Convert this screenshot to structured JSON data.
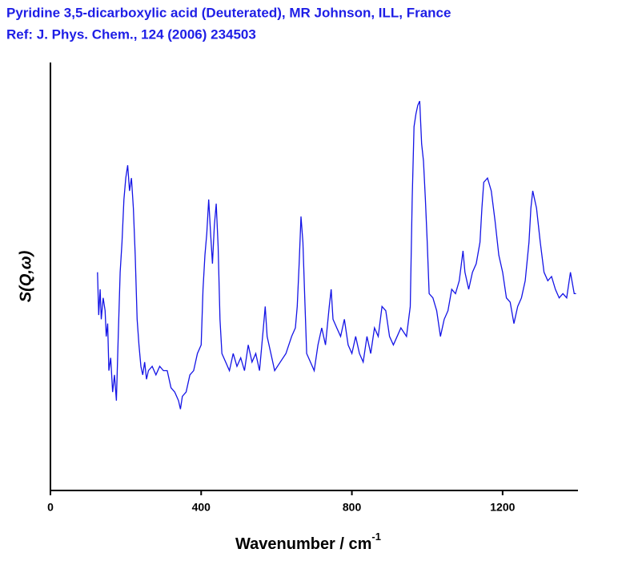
{
  "chart_data": {
    "type": "line",
    "title": "Pyridine 3,5-dicarboxylic acid (Deuterated), MR Johnson, ILL, France",
    "subtitle": "Ref: J. Phys. Chem., 124 (2006) 234503",
    "x_label": "Wavenumber / cm",
    "x_label_superscript": "-1",
    "y_label": "S(Q,ω)",
    "xlim": [
      0,
      1400
    ],
    "xticks": [
      0,
      400,
      800,
      1200
    ],
    "ylim": [
      0,
      100
    ],
    "color": "#1414e6",
    "x": [
      125,
      128,
      132,
      135,
      140,
      145,
      148,
      152,
      155,
      160,
      165,
      170,
      175,
      180,
      185,
      190,
      195,
      200,
      205,
      210,
      215,
      220,
      225,
      230,
      235,
      240,
      245,
      250,
      255,
      260,
      270,
      280,
      290,
      300,
      310,
      320,
      330,
      340,
      345,
      350,
      360,
      370,
      380,
      390,
      400,
      405,
      410,
      415,
      420,
      425,
      430,
      435,
      440,
      445,
      450,
      455,
      465,
      475,
      485,
      495,
      505,
      515,
      525,
      535,
      545,
      555,
      565,
      570,
      575,
      585,
      595,
      610,
      625,
      640,
      650,
      655,
      660,
      665,
      670,
      675,
      680,
      690,
      700,
      710,
      720,
      730,
      740,
      745,
      750,
      760,
      770,
      780,
      790,
      800,
      810,
      820,
      830,
      840,
      850,
      860,
      870,
      880,
      890,
      900,
      910,
      920,
      930,
      945,
      955,
      960,
      965,
      970,
      975,
      980,
      985,
      990,
      995,
      1000,
      1005,
      1015,
      1025,
      1035,
      1045,
      1055,
      1065,
      1075,
      1085,
      1095,
      1100,
      1110,
      1120,
      1130,
      1140,
      1145,
      1150,
      1160,
      1170,
      1180,
      1190,
      1200,
      1210,
      1220,
      1230,
      1240,
      1250,
      1260,
      1270,
      1275,
      1280,
      1290,
      1300,
      1310,
      1320,
      1330,
      1340,
      1350,
      1360,
      1370,
      1380,
      1390,
      1395
    ],
    "values": [
      51,
      41,
      47,
      40,
      45,
      42,
      36,
      39,
      28,
      31,
      23,
      27,
      21,
      36,
      51,
      58,
      68,
      73,
      76,
      70,
      73,
      66,
      55,
      40,
      34,
      29,
      27,
      30,
      26,
      28,
      29,
      27,
      29,
      28,
      28,
      24,
      23,
      21,
      19,
      22,
      23,
      27,
      28,
      32,
      34,
      47,
      55,
      60,
      68,
      60,
      53,
      62,
      67,
      57,
      40,
      32,
      30,
      28,
      32,
      29,
      31,
      28,
      34,
      30,
      32,
      28,
      38,
      43,
      36,
      32,
      28,
      30,
      32,
      36,
      38,
      43,
      53,
      64,
      58,
      45,
      32,
      30,
      28,
      34,
      38,
      34,
      43,
      47,
      40,
      38,
      36,
      40,
      34,
      32,
      36,
      32,
      30,
      36,
      32,
      38,
      36,
      43,
      42,
      36,
      34,
      36,
      38,
      36,
      43,
      68,
      85,
      88,
      90,
      91,
      81,
      77,
      68,
      58,
      46,
      45,
      42,
      36,
      40,
      42,
      47,
      46,
      49,
      56,
      51,
      47,
      51,
      53,
      58,
      66,
      72,
      73,
      70,
      63,
      55,
      51,
      45,
      44,
      39,
      43,
      45,
      49,
      58,
      66,
      70,
      66,
      58,
      51,
      49,
      50,
      47,
      45,
      46,
      45,
      51,
      46,
      46
    ]
  }
}
